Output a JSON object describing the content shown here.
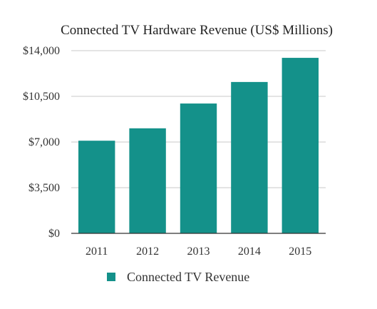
{
  "chart_data": {
    "type": "bar",
    "title": "Connected TV Hardware Revenue (US$ Millions)",
    "xlabel": "",
    "ylabel": "",
    "categories": [
      "2011",
      "2012",
      "2013",
      "2014",
      "2015"
    ],
    "series": [
      {
        "name": "Connected TV Revenue",
        "values": [
          7100,
          8050,
          9950,
          11600,
          13450
        ],
        "color": "#14918a"
      }
    ],
    "ylim": [
      0,
      14000
    ],
    "yticks": [
      0,
      3500,
      7000,
      10500,
      14000
    ],
    "ytick_labels": [
      "$0",
      "$3,500",
      "$7,000",
      "$10,500",
      "$14,000"
    ],
    "grid": true,
    "legend": "bottom-center"
  }
}
